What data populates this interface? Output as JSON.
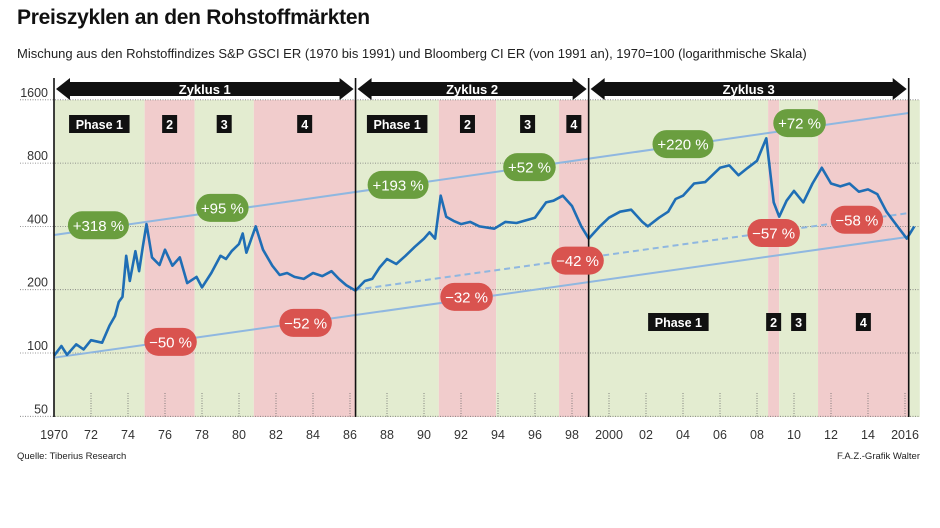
{
  "title": "Preiszyklen an den Rohstoffmärkten",
  "subtitle": "Mischung aus den Rohstoffindizes S&P GSCI ER (1970 bis 1991) und Bloomberg CI ER (von 1991 an), 1970=100 (logarithmische Skala)",
  "source": "Quelle: Tiberius Research",
  "credit": "F.A.Z.-Grafik Walter",
  "colors": {
    "line": "#1f6eb5",
    "trend": "#8fb7e0",
    "green_band": "#e3ecd0",
    "red_band": "#f1cccc",
    "green_label": "#6a9e3f",
    "red_label": "#d9534f"
  },
  "chart_data": {
    "type": "line",
    "y_scale": "log2",
    "ylim": [
      50,
      1600
    ],
    "xlim": [
      1970,
      2016.6
    ],
    "y_ticks": [
      50,
      100,
      200,
      400,
      800,
      1600
    ],
    "x_ticks": [
      {
        "x": 1970,
        "label": "1970"
      },
      {
        "x": 1972,
        "label": "72"
      },
      {
        "x": 1974,
        "label": "74"
      },
      {
        "x": 1976,
        "label": "76"
      },
      {
        "x": 1978,
        "label": "78"
      },
      {
        "x": 1980,
        "label": "80"
      },
      {
        "x": 1982,
        "label": "82"
      },
      {
        "x": 1984,
        "label": "84"
      },
      {
        "x": 1986,
        "label": "86"
      },
      {
        "x": 1988,
        "label": "88"
      },
      {
        "x": 1990,
        "label": "90"
      },
      {
        "x": 1992,
        "label": "92"
      },
      {
        "x": 1994,
        "label": "94"
      },
      {
        "x": 1996,
        "label": "96"
      },
      {
        "x": 1998,
        "label": "98"
      },
      {
        "x": 2000,
        "label": "2000"
      },
      {
        "x": 2002,
        "label": "02"
      },
      {
        "x": 2004,
        "label": "04"
      },
      {
        "x": 2006,
        "label": "06"
      },
      {
        "x": 2008,
        "label": "08"
      },
      {
        "x": 2010,
        "label": "10"
      },
      {
        "x": 2012,
        "label": "12"
      },
      {
        "x": 2014,
        "label": "14"
      },
      {
        "x": 2016,
        "label": "2016"
      }
    ],
    "series": [
      {
        "values": [
          [
            1970,
            97
          ],
          [
            1970.4,
            108
          ],
          [
            1970.7,
            98
          ],
          [
            1971.2,
            110
          ],
          [
            1971.6,
            104
          ],
          [
            1972,
            115
          ],
          [
            1972.6,
            112
          ],
          [
            1973,
            135
          ],
          [
            1973.3,
            150
          ],
          [
            1973.5,
            175
          ],
          [
            1973.7,
            185
          ],
          [
            1973.9,
            290
          ],
          [
            1974.1,
            220
          ],
          [
            1974.4,
            305
          ],
          [
            1974.6,
            245
          ],
          [
            1974.8,
            320
          ],
          [
            1975,
            410
          ],
          [
            1975.3,
            285
          ],
          [
            1975.7,
            262
          ],
          [
            1976,
            310
          ],
          [
            1976.4,
            260
          ],
          [
            1976.8,
            285
          ],
          [
            1977.2,
            215
          ],
          [
            1977.7,
            230
          ],
          [
            1978,
            205
          ],
          [
            1978.5,
            240
          ],
          [
            1979,
            290
          ],
          [
            1979.3,
            280
          ],
          [
            1979.6,
            305
          ],
          [
            1980,
            330
          ],
          [
            1980.2,
            370
          ],
          [
            1980.4,
            300
          ],
          [
            1980.9,
            400
          ],
          [
            1981.3,
            310
          ],
          [
            1981.8,
            260
          ],
          [
            1982.2,
            235
          ],
          [
            1982.6,
            240
          ],
          [
            1983,
            230
          ],
          [
            1983.5,
            225
          ],
          [
            1984,
            240
          ],
          [
            1984.5,
            232
          ],
          [
            1985,
            245
          ],
          [
            1985.4,
            225
          ],
          [
            1985.8,
            210
          ],
          [
            1986.3,
            198
          ],
          [
            1986.8,
            220
          ],
          [
            1987.2,
            225
          ],
          [
            1987.6,
            255
          ],
          [
            1988,
            280
          ],
          [
            1988.5,
            265
          ],
          [
            1989,
            290
          ],
          [
            1989.5,
            320
          ],
          [
            1990,
            350
          ],
          [
            1990.3,
            375
          ],
          [
            1990.6,
            350
          ],
          [
            1990.9,
            560
          ],
          [
            1991.2,
            445
          ],
          [
            1991.6,
            425
          ],
          [
            1992,
            410
          ],
          [
            1992.5,
            420
          ],
          [
            1993,
            400
          ],
          [
            1993.8,
            390
          ],
          [
            1994.4,
            420
          ],
          [
            1995,
            415
          ],
          [
            1996,
            440
          ],
          [
            1996.6,
            520
          ],
          [
            1997,
            530
          ],
          [
            1997.5,
            560
          ],
          [
            1998,
            500
          ],
          [
            1998.5,
            400
          ],
          [
            1998.9,
            350
          ],
          [
            1999.5,
            400
          ],
          [
            2000,
            440
          ],
          [
            2000.6,
            470
          ],
          [
            2001.2,
            480
          ],
          [
            2001.8,
            420
          ],
          [
            2002.1,
            400
          ],
          [
            2002.7,
            440
          ],
          [
            2003.2,
            470
          ],
          [
            2003.6,
            540
          ],
          [
            2004,
            560
          ],
          [
            2004.6,
            640
          ],
          [
            2005.2,
            650
          ],
          [
            2006,
            760
          ],
          [
            2006.5,
            780
          ],
          [
            2007,
            700
          ],
          [
            2007.5,
            760
          ],
          [
            2008,
            820
          ],
          [
            2008.3,
            950
          ],
          [
            2008.5,
            1050
          ],
          [
            2008.9,
            520
          ],
          [
            2009.2,
            445
          ],
          [
            2009.6,
            530
          ],
          [
            2010,
            590
          ],
          [
            2010.5,
            520
          ],
          [
            2011,
            640
          ],
          [
            2011.5,
            760
          ],
          [
            2012,
            640
          ],
          [
            2012.5,
            620
          ],
          [
            2013,
            640
          ],
          [
            2013.5,
            585
          ],
          [
            2014,
            600
          ],
          [
            2014.5,
            570
          ],
          [
            2015,
            470
          ],
          [
            2015.5,
            410
          ],
          [
            2016.1,
            350
          ],
          [
            2016.5,
            400
          ]
        ]
      }
    ],
    "trend_lines": [
      {
        "style": "solid",
        "from": [
          1970,
          364
        ],
        "to": [
          2016.2,
          1385
        ]
      },
      {
        "style": "solid",
        "from": [
          1970,
          95
        ],
        "to": [
          2016.2,
          357
        ]
      },
      {
        "style": "dashed",
        "from": [
          1986.3,
          200
        ],
        "to": [
          2016.2,
          463
        ]
      }
    ],
    "cycles": [
      {
        "label": "Zyklus 1",
        "from": 1970,
        "to": 1986.3
      },
      {
        "label": "Zyklus 2",
        "from": 1986.3,
        "to": 1998.9
      },
      {
        "label": "Zyklus 3",
        "from": 1998.9,
        "to": 2016.2
      }
    ],
    "phases": [
      {
        "from": 1970,
        "to": 1974.9,
        "type": "green",
        "label": "Phase 1",
        "row": "top"
      },
      {
        "from": 1974.9,
        "to": 1977.6,
        "type": "red",
        "label": "2",
        "row": "top"
      },
      {
        "from": 1977.6,
        "to": 1980.8,
        "type": "green",
        "label": "3",
        "row": "top"
      },
      {
        "from": 1980.8,
        "to": 1986.3,
        "type": "red",
        "label": "4",
        "row": "top"
      },
      {
        "from": 1986.3,
        "to": 1990.8,
        "type": "green",
        "label": "Phase 1",
        "row": "top"
      },
      {
        "from": 1990.8,
        "to": 1993.9,
        "type": "red",
        "label": "2",
        "row": "top"
      },
      {
        "from": 1993.9,
        "to": 1997.3,
        "type": "green",
        "label": "3",
        "row": "top"
      },
      {
        "from": 1997.3,
        "to": 1998.9,
        "type": "red",
        "label": "4",
        "row": "top"
      },
      {
        "from": 1998.9,
        "to": 2008.6,
        "type": "green",
        "label": "Phase 1",
        "row": "bottom"
      },
      {
        "from": 2008.6,
        "to": 2009.2,
        "type": "red",
        "label": "2",
        "row": "bottom"
      },
      {
        "from": 2009.2,
        "to": 2011.3,
        "type": "green",
        "label": "3",
        "row": "bottom"
      },
      {
        "from": 2011.3,
        "to": 2016.2,
        "type": "red",
        "label": "4",
        "row": "bottom"
      },
      {
        "from": 2016.2,
        "to": 2016.8,
        "type": "green",
        "label": "",
        "row": "bottom"
      }
    ],
    "annotations": [
      {
        "text": "+318 %",
        "type": "green",
        "x": 1972.4,
        "y": 405
      },
      {
        "text": "+95 %",
        "type": "green",
        "x": 1979.1,
        "y": 490
      },
      {
        "text": "+193 %",
        "type": "green",
        "x": 1988.6,
        "y": 630
      },
      {
        "text": "+52 %",
        "type": "green",
        "x": 1995.7,
        "y": 765
      },
      {
        "text": "+220 %",
        "type": "green",
        "x": 2004,
        "y": 985
      },
      {
        "text": "+72 %",
        "type": "green",
        "x": 2010.3,
        "y": 1240
      },
      {
        "text": "−50 %",
        "type": "red",
        "x": 1976.3,
        "y": 113
      },
      {
        "text": "−52 %",
        "type": "red",
        "x": 1983.6,
        "y": 139
      },
      {
        "text": "−32 %",
        "type": "red",
        "x": 1992.3,
        "y": 185
      },
      {
        "text": "−42 %",
        "type": "red",
        "x": 1998.3,
        "y": 275
      },
      {
        "text": "−57 %",
        "type": "red",
        "x": 2008.9,
        "y": 372
      },
      {
        "text": "−58 %",
        "type": "red",
        "x": 2013.4,
        "y": 430
      }
    ]
  }
}
